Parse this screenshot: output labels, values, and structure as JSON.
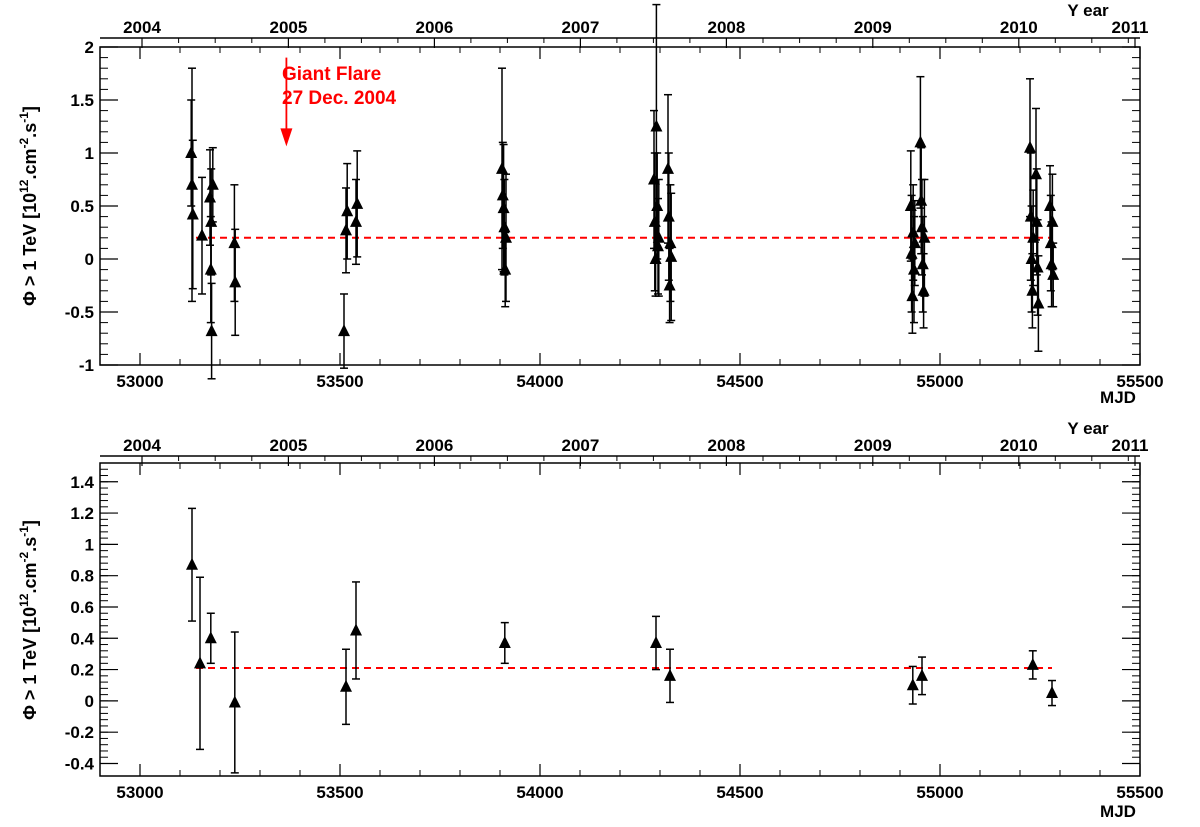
{
  "chart_data": [
    {
      "type": "scatter",
      "panel": "top",
      "xlabel": "MJD",
      "top_axis_label": "Y ear",
      "ylabel_base": "Φ >  1 TeV [10",
      "ylabel_exp1": "12",
      "ylabel_mid": ".cm",
      "ylabel_exp2": "-2",
      "ylabel_mid2": ".s",
      "ylabel_exp3": "-1",
      "ylabel_end": "]",
      "xlim": [
        52900,
        55500
      ],
      "ylim": [
        -1,
        2
      ],
      "x_ticks": [
        "53000",
        "53500",
        "54000",
        "54500",
        "55000",
        "55500"
      ],
      "y_ticks": [
        "-1",
        "-0.5",
        "0",
        "0.5",
        "1",
        "1.5",
        "2"
      ],
      "year_ticks": [
        {
          "label": "2004",
          "mjd": 53005
        },
        {
          "label": "2005",
          "mjd": 53371
        },
        {
          "label": "2006",
          "mjd": 53736
        },
        {
          "label": "2007",
          "mjd": 54101
        },
        {
          "label": "2008",
          "mjd": 54466
        },
        {
          "label": "2009",
          "mjd": 54832
        },
        {
          "label": "2010",
          "mjd": 55197
        },
        {
          "label": "2011",
          "mjd": 55562
        }
      ],
      "mean_level": 0.2,
      "mean_range": [
        53140,
        55280
      ],
      "annotation": {
        "line1": "Giant Flare",
        "line2": "27 Dec. 2004",
        "arrow_mjd": 53366,
        "arrow_y_start": 1.9,
        "arrow_y_end": 1.1,
        "color": "#ff0000"
      },
      "points": [
        {
          "x": 53128,
          "y": 1.0,
          "err": 0.5
        },
        {
          "x": 53130,
          "y": 0.7,
          "err": 1.1
        },
        {
          "x": 53132,
          "y": 0.42,
          "err": 0.7
        },
        {
          "x": 53155,
          "y": 0.22,
          "err": 0.55
        },
        {
          "x": 53175,
          "y": 0.58,
          "err": 0.45
        },
        {
          "x": 53177,
          "y": -0.1,
          "err": 0.5
        },
        {
          "x": 53178,
          "y": 0.35,
          "err": 0.5
        },
        {
          "x": 53179,
          "y": -0.68,
          "err": 0.45
        },
        {
          "x": 53182,
          "y": 0.7,
          "err": 0.35
        },
        {
          "x": 53236,
          "y": 0.15,
          "err": 0.55
        },
        {
          "x": 53238,
          "y": -0.22,
          "err": 0.5
        },
        {
          "x": 53510,
          "y": -0.68,
          "err": 0.35
        },
        {
          "x": 53515,
          "y": 0.27,
          "err": 0.4
        },
        {
          "x": 53518,
          "y": 0.45,
          "err": 0.45
        },
        {
          "x": 53540,
          "y": 0.35,
          "err": 0.4
        },
        {
          "x": 53543,
          "y": 0.52,
          "err": 0.5
        },
        {
          "x": 53905,
          "y": 0.85,
          "err": 0.95
        },
        {
          "x": 53907,
          "y": 0.6,
          "err": 0.5
        },
        {
          "x": 53909,
          "y": 0.48,
          "err": 0.6
        },
        {
          "x": 53911,
          "y": 0.3,
          "err": 0.45
        },
        {
          "x": 53913,
          "y": -0.1,
          "err": 0.35
        },
        {
          "x": 53915,
          "y": 0.2,
          "err": 0.6
        },
        {
          "x": 54285,
          "y": 0.75,
          "err": 0.65
        },
        {
          "x": 54287,
          "y": 0.35,
          "err": 0.65
        },
        {
          "x": 54289,
          "y": 0.0,
          "err": 0.35
        },
        {
          "x": 54291,
          "y": 1.25,
          "err": 1.15
        },
        {
          "x": 54293,
          "y": 0.5,
          "err": 0.5
        },
        {
          "x": 54295,
          "y": 0.12,
          "err": 0.45
        },
        {
          "x": 54297,
          "y": 0.2,
          "err": 0.55
        },
        {
          "x": 54320,
          "y": 0.85,
          "err": 0.7
        },
        {
          "x": 54322,
          "y": 0.4,
          "err": 0.6
        },
        {
          "x": 54324,
          "y": -0.25,
          "err": 0.35
        },
        {
          "x": 54326,
          "y": 0.15,
          "err": 0.55
        },
        {
          "x": 54328,
          "y": 0.02,
          "err": 0.6
        },
        {
          "x": 54927,
          "y": 0.5,
          "err": 0.52
        },
        {
          "x": 54929,
          "y": 0.05,
          "err": 0.55
        },
        {
          "x": 54931,
          "y": -0.35,
          "err": 0.35
        },
        {
          "x": 54933,
          "y": 0.25,
          "err": 0.45
        },
        {
          "x": 54935,
          "y": -0.1,
          "err": 0.5
        },
        {
          "x": 54937,
          "y": 0.15,
          "err": 0.4
        },
        {
          "x": 54951,
          "y": 1.1,
          "err": 0.62
        },
        {
          "x": 54953,
          "y": 0.55,
          "err": 0.5
        },
        {
          "x": 54955,
          "y": 0.3,
          "err": 0.45
        },
        {
          "x": 54957,
          "y": -0.05,
          "err": 0.45
        },
        {
          "x": 54959,
          "y": -0.3,
          "err": 0.35
        },
        {
          "x": 54961,
          "y": 0.2,
          "err": 0.55
        },
        {
          "x": 55225,
          "y": 1.05,
          "err": 0.65
        },
        {
          "x": 55227,
          "y": 0.4,
          "err": 0.6
        },
        {
          "x": 55229,
          "y": 0.0,
          "err": 0.5
        },
        {
          "x": 55231,
          "y": -0.3,
          "err": 0.35
        },
        {
          "x": 55233,
          "y": 0.2,
          "err": 0.45
        },
        {
          "x": 55240,
          "y": 0.8,
          "err": 0.62
        },
        {
          "x": 55242,
          "y": 0.35,
          "err": 0.5
        },
        {
          "x": 55244,
          "y": -0.08,
          "err": 0.45
        },
        {
          "x": 55246,
          "y": -0.42,
          "err": 0.45
        },
        {
          "x": 55275,
          "y": 0.5,
          "err": 0.38
        },
        {
          "x": 55277,
          "y": 0.15,
          "err": 0.45
        },
        {
          "x": 55279,
          "y": -0.05,
          "err": 0.4
        },
        {
          "x": 55281,
          "y": 0.35,
          "err": 0.45
        },
        {
          "x": 55283,
          "y": -0.15,
          "err": 0.3
        }
      ]
    },
    {
      "type": "scatter",
      "panel": "bottom",
      "xlabel": "MJD",
      "top_axis_label": "Y ear",
      "ylabel_base": "Φ >  1 TeV [10",
      "ylabel_exp1": "12",
      "ylabel_mid": ".cm",
      "ylabel_exp2": "-2",
      "ylabel_mid2": ".s",
      "ylabel_exp3": "-1",
      "ylabel_end": "]",
      "xlim": [
        52900,
        55500
      ],
      "ylim": [
        -0.48,
        1.52
      ],
      "x_ticks": [
        "53000",
        "53500",
        "54000",
        "54500",
        "55000",
        "55500"
      ],
      "y_ticks": [
        "-0.4",
        "-0.2",
        "0",
        "0.2",
        "0.4",
        "0.6",
        "0.8",
        "1",
        "1.2",
        "1.4"
      ],
      "year_ticks": [
        {
          "label": "2004",
          "mjd": 53005
        },
        {
          "label": "2005",
          "mjd": 53371
        },
        {
          "label": "2006",
          "mjd": 53736
        },
        {
          "label": "2007",
          "mjd": 54101
        },
        {
          "label": "2008",
          "mjd": 54466
        },
        {
          "label": "2009",
          "mjd": 54832
        },
        {
          "label": "2010",
          "mjd": 55197
        },
        {
          "label": "2011",
          "mjd": 55562
        }
      ],
      "mean_level": 0.21,
      "mean_range": [
        53140,
        55280
      ],
      "points": [
        {
          "x": 53130,
          "y": 0.87,
          "err": 0.36
        },
        {
          "x": 53150,
          "y": 0.24,
          "err": 0.55
        },
        {
          "x": 53177,
          "y": 0.4,
          "err": 0.16
        },
        {
          "x": 53237,
          "y": -0.01,
          "err": 0.45
        },
        {
          "x": 53515,
          "y": 0.09,
          "err": 0.24
        },
        {
          "x": 53540,
          "y": 0.45,
          "err": 0.31
        },
        {
          "x": 53912,
          "y": 0.37,
          "err": 0.13
        },
        {
          "x": 54290,
          "y": 0.37,
          "err": 0.17
        },
        {
          "x": 54325,
          "y": 0.16,
          "err": 0.17
        },
        {
          "x": 54932,
          "y": 0.1,
          "err": 0.12
        },
        {
          "x": 54955,
          "y": 0.16,
          "err": 0.12
        },
        {
          "x": 55232,
          "y": 0.23,
          "err": 0.09
        },
        {
          "x": 55280,
          "y": 0.05,
          "err": 0.08
        }
      ]
    }
  ],
  "colors": {
    "axis": "#000000",
    "mean_line": "#ff0000",
    "annotation": "#ff0000",
    "markers": "#000000"
  }
}
